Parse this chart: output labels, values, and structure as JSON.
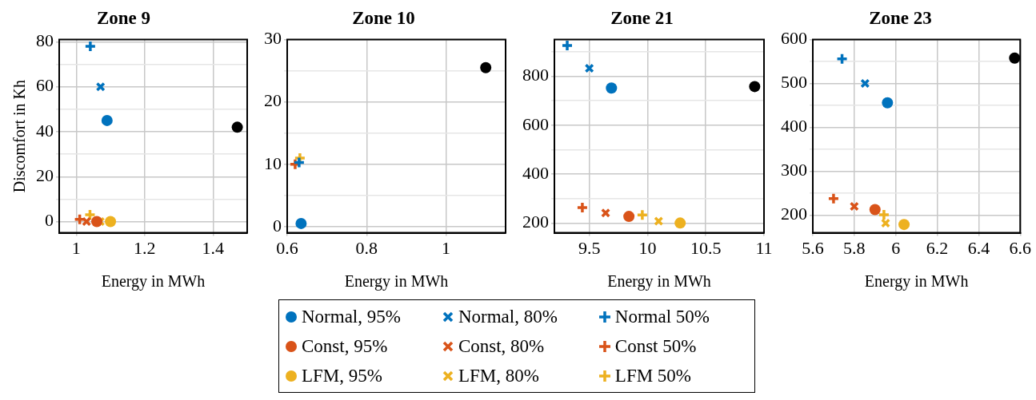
{
  "chart_data": [
    {
      "type": "scatter",
      "title": "Zone 9",
      "xlabel": "Energy in MWh",
      "ylabel": "Discomfort in Kh",
      "xlim": [
        0.95,
        1.5
      ],
      "xticks": [
        1,
        1.2,
        1.4
      ],
      "ylim": [
        -5,
        81
      ],
      "yticks": [
        0,
        {
          "value": 10,
          "label": null
        },
        20,
        {
          "value": 30,
          "label": null
        },
        40,
        {
          "value": 50,
          "label": null
        },
        60,
        {
          "value": 70,
          "label": null
        },
        80
      ],
      "grid": true,
      "legend": "bottom",
      "series": [
        {
          "name": "Normal, 95%",
          "color": "#0072bd",
          "marker": "circle",
          "x": [
            1.09
          ],
          "values": [
            45
          ]
        },
        {
          "name": "Normal, 80%",
          "color": "#0072bd",
          "marker": "x",
          "x": [
            1.071
          ],
          "values": [
            60
          ]
        },
        {
          "name": "Normal 50%",
          "color": "#0072bd",
          "marker": "cross",
          "x": [
            1.041
          ],
          "values": [
            78
          ]
        },
        {
          "name": "Const, 95%",
          "color": "#d95319",
          "marker": "circle",
          "x": [
            1.06
          ],
          "values": [
            0
          ]
        },
        {
          "name": "Const, 80%",
          "color": "#d95319",
          "marker": "x",
          "x": [
            1.03
          ],
          "values": [
            0
          ]
        },
        {
          "name": "Const 50%",
          "color": "#d95319",
          "marker": "cross",
          "x": [
            1.01
          ],
          "values": [
            1
          ]
        },
        {
          "name": "LFM, 95%",
          "color": "#edb120",
          "marker": "circle",
          "x": [
            1.1
          ],
          "values": [
            0
          ]
        },
        {
          "name": "LFM, 80%",
          "color": "#edb120",
          "marker": "x",
          "x": [
            1.07
          ],
          "values": [
            0
          ]
        },
        {
          "name": "LFM 50%",
          "color": "#edb120",
          "marker": "cross",
          "x": [
            1.04
          ],
          "values": [
            3
          ]
        },
        {
          "color": "#000000",
          "marker": "circle",
          "x": [
            1.471
          ],
          "values": [
            42
          ]
        }
      ]
    },
    {
      "type": "scatter",
      "title": "Zone 10",
      "xlabel": "Energy in MWh",
      "xlim": [
        0.6,
        1.15
      ],
      "xticks": [
        0.6,
        0.8,
        1
      ],
      "ylim": [
        -1,
        30
      ],
      "yticks": [
        0,
        {
          "value": 5,
          "label": null
        },
        10,
        {
          "value": 15,
          "label": null
        },
        20,
        {
          "value": 25,
          "label": null
        },
        30
      ],
      "grid": true,
      "series": [
        {
          "color": "#0072bd",
          "marker": "circle",
          "x": [
            0.635
          ],
          "values": [
            0.5
          ]
        },
        {
          "color": "#0072bd",
          "marker": "x",
          "x": [
            null
          ],
          "values": [
            null
          ]
        },
        {
          "color": "#0072bd",
          "marker": "cross",
          "x": [
            0.63
          ],
          "values": [
            10.3
          ]
        },
        {
          "color": "#d95319",
          "marker": "circle",
          "x": [
            null
          ],
          "values": [
            null
          ]
        },
        {
          "color": "#d95319",
          "marker": "x",
          "x": [
            null
          ],
          "values": [
            null
          ]
        },
        {
          "color": "#d95319",
          "marker": "cross",
          "x": [
            0.62
          ],
          "values": [
            10
          ]
        },
        {
          "color": "#edb120",
          "marker": "circle",
          "x": [
            null
          ],
          "values": [
            null
          ]
        },
        {
          "color": "#edb120",
          "marker": "x",
          "x": [
            null
          ],
          "values": [
            null
          ]
        },
        {
          "color": "#edb120",
          "marker": "cross",
          "x": [
            0.632
          ],
          "values": [
            11
          ]
        },
        {
          "color": "#000000",
          "marker": "circle",
          "x": [
            1.1
          ],
          "values": [
            25.5
          ]
        }
      ]
    },
    {
      "type": "scatter",
      "title": "Zone 21",
      "xlabel": "Energy in MWh",
      "xlim": [
        9.2,
        11
      ],
      "xticks": [
        9.5,
        10,
        10.5,
        11
      ],
      "ylim": [
        160,
        950
      ],
      "yticks": [
        200,
        {
          "value": 300,
          "label": null
        },
        400,
        {
          "value": 500,
          "label": null
        },
        600,
        {
          "value": 700,
          "label": null
        },
        800,
        {
          "value": 900,
          "label": null
        }
      ],
      "grid": true,
      "series": [
        {
          "color": "#0072bd",
          "marker": "circle",
          "x": [
            9.69
          ],
          "values": [
            752
          ]
        },
        {
          "color": "#0072bd",
          "marker": "x",
          "x": [
            9.5
          ],
          "values": [
            833
          ]
        },
        {
          "color": "#0072bd",
          "marker": "cross",
          "x": [
            9.31
          ],
          "values": [
            926
          ]
        },
        {
          "color": "#d95319",
          "marker": "circle",
          "x": [
            9.84
          ],
          "values": [
            227
          ]
        },
        {
          "color": "#d95319",
          "marker": "x",
          "x": [
            9.64
          ],
          "values": [
            241
          ]
        },
        {
          "color": "#d95319",
          "marker": "cross",
          "x": [
            9.44
          ],
          "values": [
            263
          ]
        },
        {
          "color": "#edb120",
          "marker": "circle",
          "x": [
            10.28
          ],
          "values": [
            200
          ]
        },
        {
          "color": "#edb120",
          "marker": "x",
          "x": [
            10.095
          ],
          "values": [
            208
          ]
        },
        {
          "color": "#edb120",
          "marker": "cross",
          "x": [
            9.955
          ],
          "values": [
            233
          ]
        },
        {
          "color": "#000000",
          "marker": "circle",
          "x": [
            10.92
          ],
          "values": [
            758
          ]
        }
      ]
    },
    {
      "type": "scatter",
      "title": "Zone 23",
      "xlabel": "Energy in MWh",
      "xlim": [
        5.6,
        6.6
      ],
      "xticks": [
        5.6,
        5.8,
        6,
        6.2,
        6.4,
        6.6
      ],
      "ylim": [
        160,
        600
      ],
      "yticks": [
        200,
        {
          "value": 250,
          "label": null
        },
        300,
        {
          "value": 350,
          "label": null
        },
        400,
        {
          "value": 450,
          "label": null
        },
        500,
        {
          "value": 550,
          "label": null
        },
        600
      ],
      "grid": true,
      "series": [
        {
          "color": "#0072bd",
          "marker": "circle",
          "x": [
            5.96
          ],
          "values": [
            456
          ]
        },
        {
          "color": "#0072bd",
          "marker": "x",
          "x": [
            5.852
          ],
          "values": [
            500
          ]
        },
        {
          "color": "#0072bd",
          "marker": "cross",
          "x": [
            5.741
          ],
          "values": [
            556
          ]
        },
        {
          "color": "#d95319",
          "marker": "circle",
          "x": [
            5.9
          ],
          "values": [
            213
          ]
        },
        {
          "color": "#d95319",
          "marker": "x",
          "x": [
            5.8
          ],
          "values": [
            220
          ]
        },
        {
          "color": "#d95319",
          "marker": "cross",
          "x": [
            5.7
          ],
          "values": [
            238
          ]
        },
        {
          "color": "#edb120",
          "marker": "circle",
          "x": [
            6.04
          ],
          "values": [
            179
          ]
        },
        {
          "color": "#edb120",
          "marker": "x",
          "x": [
            5.951
          ],
          "values": [
            182
          ]
        },
        {
          "color": "#edb120",
          "marker": "cross",
          "x": [
            5.943
          ],
          "values": [
            201
          ]
        },
        {
          "color": "#000000",
          "marker": "circle",
          "x": [
            6.573
          ],
          "values": [
            558
          ]
        }
      ]
    }
  ]
}
